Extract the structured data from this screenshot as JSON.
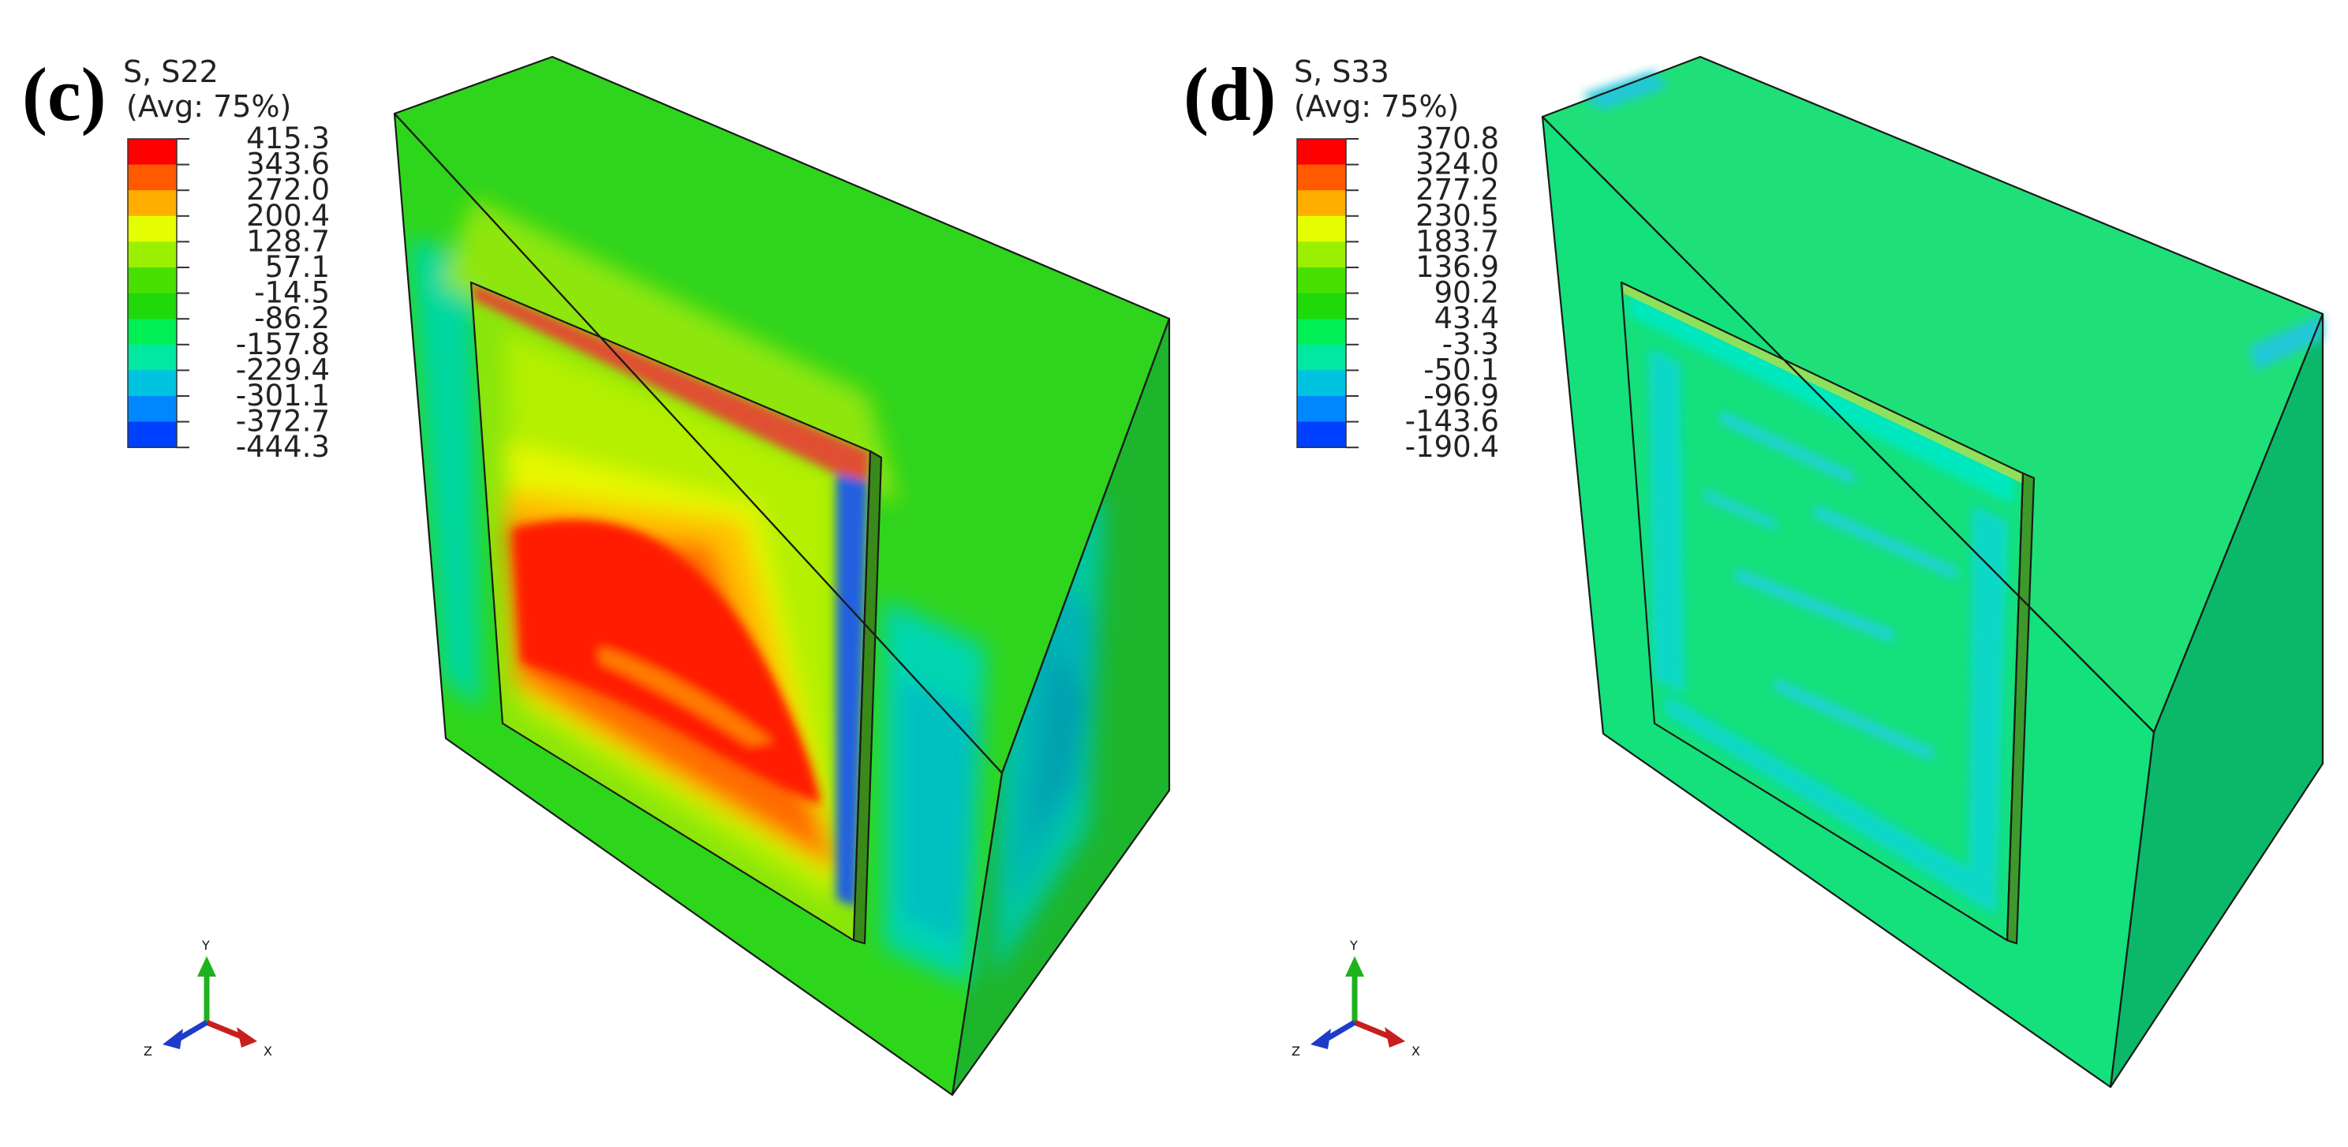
{
  "panels": [
    {
      "id": "c",
      "letter": "(c)",
      "legend_title_line1": "S, S22",
      "legend_title_line2": "(Avg: 75%)",
      "legend_values": [
        "415.3",
        "343.6",
        "272.0",
        "200.4",
        "128.7",
        "57.1",
        "-14.5",
        "-86.2",
        "-157.8",
        "-229.4",
        "-301.1",
        "-372.7",
        "-444.3"
      ],
      "triad_labels": {
        "y": "Y",
        "z": "Z",
        "x": "X"
      }
    },
    {
      "id": "d",
      "letter": "(d)",
      "legend_title_line1": "S, S33",
      "legend_title_line2": "(Avg: 75%)",
      "legend_values": [
        "370.8",
        "324.0",
        "277.2",
        "230.5",
        "183.7",
        "136.9",
        "90.2",
        "43.4",
        "-3.3",
        "-50.1",
        "-96.9",
        "-143.6",
        "-190.4"
      ],
      "triad_labels": {
        "y": "Y",
        "z": "Z",
        "x": "X"
      }
    }
  ],
  "colors": {
    "contour_bands": [
      "#ff0000",
      "#ff5a00",
      "#ffae00",
      "#e6ff00",
      "#9bef00",
      "#48e000",
      "#1fd90a",
      "#00ef55",
      "#00e8a2",
      "#00c3e0",
      "#0087ff",
      "#0040ff",
      "#0000ff"
    ],
    "outline": "#1a1a1a",
    "axis_y": "#1fb21f",
    "axis_x": "#c81e1e",
    "axis_z": "#1e3cc8"
  }
}
